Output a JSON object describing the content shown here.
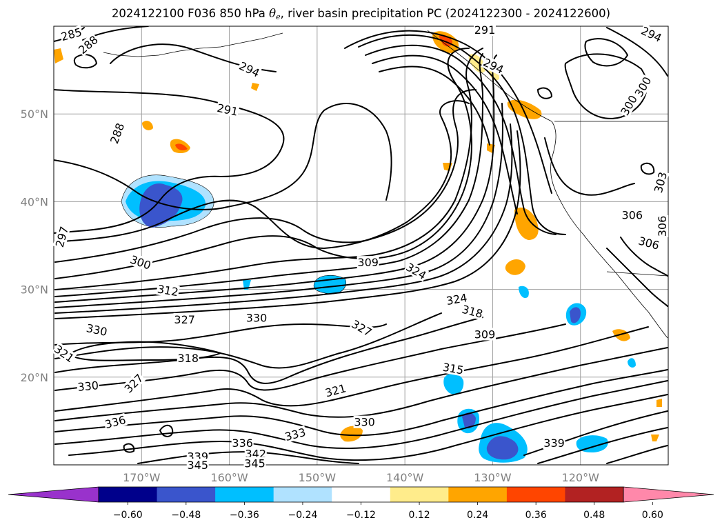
{
  "title": {
    "prefix": "2024122100 F036 850 hPa ",
    "theta": "θ",
    "subscript": "e",
    "suffix": ", river basin precipitation PC (2024122300 - 2024122600)"
  },
  "map": {
    "extent": {
      "lon_min": -180,
      "lon_max": -110,
      "lat_min": 10,
      "lat_max": 60
    },
    "lon_ticks": [
      {
        "lon": -170,
        "label": "170°W"
      },
      {
        "lon": -160,
        "label": "160°W"
      },
      {
        "lon": -150,
        "label": "150°W"
      },
      {
        "lon": -140,
        "label": "140°W"
      },
      {
        "lon": -130,
        "label": "130°W"
      },
      {
        "lon": -120,
        "label": "120°W"
      }
    ],
    "lat_ticks": [
      {
        "lat": 20,
        "label": "20°N"
      },
      {
        "lat": 30,
        "label": "30°N"
      },
      {
        "lat": 40,
        "label": "40°N"
      },
      {
        "lat": 50,
        "label": "50°N"
      }
    ],
    "grid": true,
    "gridline_color": "#a0a0a0"
  },
  "contour_labels": [
    {
      "text": "285",
      "lon": -178.0,
      "lat": 59.1,
      "angle": -15
    },
    {
      "text": "288",
      "lon": -176.1,
      "lat": 57.9,
      "angle": -40
    },
    {
      "text": "294",
      "lon": -157.7,
      "lat": 55.1,
      "angle": 25
    },
    {
      "text": "291",
      "lon": -160.2,
      "lat": 50.5,
      "angle": 12
    },
    {
      "text": "288",
      "lon": -172.8,
      "lat": 47.8,
      "angle": -70
    },
    {
      "text": "291",
      "lon": -130.9,
      "lat": 59.6,
      "angle": 0
    },
    {
      "text": "294",
      "lon": -129.9,
      "lat": 55.5,
      "angle": 25
    },
    {
      "text": "294",
      "lon": -111.9,
      "lat": 59.1,
      "angle": 25
    },
    {
      "text": "300",
      "lon": -112.9,
      "lat": 53.1,
      "angle": -60
    },
    {
      "text": "300",
      "lon": -114.5,
      "lat": 51.0,
      "angle": -60
    },
    {
      "text": "306",
      "lon": -114.1,
      "lat": 38.5,
      "angle": 0
    },
    {
      "text": "303",
      "lon": -110.9,
      "lat": 42.2,
      "angle": -75
    },
    {
      "text": "306",
      "lon": -110.7,
      "lat": 37.2,
      "angle": -90
    },
    {
      "text": "306",
      "lon": -112.2,
      "lat": 35.3,
      "angle": 15
    },
    {
      "text": "297",
      "lon": -179.1,
      "lat": 36.0,
      "angle": -75
    },
    {
      "text": "300",
      "lon": -170.1,
      "lat": 33.1,
      "angle": 20
    },
    {
      "text": "309",
      "lon": -144.2,
      "lat": 33.1,
      "angle": 0
    },
    {
      "text": "324",
      "lon": -138.7,
      "lat": 32.1,
      "angle": 30
    },
    {
      "text": "312",
      "lon": -167.0,
      "lat": 29.9,
      "angle": 10
    },
    {
      "text": "324",
      "lon": -134.1,
      "lat": 28.9,
      "angle": -10
    },
    {
      "text": "318",
      "lon": -132.3,
      "lat": 27.5,
      "angle": 15
    },
    {
      "text": "327",
      "lon": -165.1,
      "lat": 26.6,
      "angle": 0
    },
    {
      "text": "330",
      "lon": -156.9,
      "lat": 26.8,
      "angle": 0
    },
    {
      "text": "327",
      "lon": -144.9,
      "lat": 25.6,
      "angle": 30
    },
    {
      "text": "330",
      "lon": -175.1,
      "lat": 25.4,
      "angle": 12
    },
    {
      "text": "309",
      "lon": -130.9,
      "lat": 24.9,
      "angle": 0
    },
    {
      "text": "321",
      "lon": -178.8,
      "lat": 22.7,
      "angle": 35
    },
    {
      "text": "318",
      "lon": -164.7,
      "lat": 22.2,
      "angle": 0
    },
    {
      "text": "315",
      "lon": -134.5,
      "lat": 21.0,
      "angle": 10
    },
    {
      "text": "327",
      "lon": -170.9,
      "lat": 19.3,
      "angle": -45
    },
    {
      "text": "330",
      "lon": -176.1,
      "lat": 19.0,
      "angle": -5
    },
    {
      "text": "321",
      "lon": -147.9,
      "lat": 18.5,
      "angle": -15
    },
    {
      "text": "336",
      "lon": -173.0,
      "lat": 14.9,
      "angle": -15
    },
    {
      "text": "330",
      "lon": -144.6,
      "lat": 14.9,
      "angle": 0
    },
    {
      "text": "333",
      "lon": -152.5,
      "lat": 13.5,
      "angle": -15
    },
    {
      "text": "339",
      "lon": -123.0,
      "lat": 12.5,
      "angle": 0
    },
    {
      "text": "336",
      "lon": -158.5,
      "lat": 12.5,
      "angle": 0
    },
    {
      "text": "342",
      "lon": -157.0,
      "lat": 11.3,
      "angle": 0
    },
    {
      "text": "339",
      "lon": -163.6,
      "lat": 11.0,
      "angle": 0
    },
    {
      "text": "345",
      "lon": -163.6,
      "lat": 10.0,
      "angle": 0
    },
    {
      "text": "345",
      "lon": -157.1,
      "lat": 10.2,
      "angle": 0
    }
  ],
  "precip_pc_anomalies": [
    {
      "lon": -165.5,
      "lat": 40.0,
      "level": -0.36
    },
    {
      "lon": -164.9,
      "lat": 39.5,
      "level": -0.48
    },
    {
      "lon": -150.9,
      "lat": 30.5,
      "level": -0.24
    },
    {
      "lon": -128.7,
      "lat": 29.5,
      "level": -0.24
    },
    {
      "lon": -125.4,
      "lat": 27.5,
      "level": -0.36
    },
    {
      "lon": -134.6,
      "lat": 19.5,
      "level": -0.24
    },
    {
      "lon": -132.5,
      "lat": 15.0,
      "level": -0.36
    },
    {
      "lon": -129.2,
      "lat": 12.0,
      "level": -0.48
    },
    {
      "lon": -122.1,
      "lat": 12.5,
      "level": -0.24
    },
    {
      "lon": -133.9,
      "lat": 59.0,
      "level": 0.24
    },
    {
      "lon": -127.1,
      "lat": 50.5,
      "level": 0.24
    },
    {
      "lon": -163.4,
      "lat": 47.0,
      "level": 0.36
    },
    {
      "lon": -127.1,
      "lat": 37.9,
      "level": 0.24
    },
    {
      "lon": -128.0,
      "lat": 32.5,
      "level": 0.24
    },
    {
      "lon": -144.4,
      "lat": 13.5,
      "level": 0.24
    }
  ],
  "colorbar": {
    "orientation": "horizontal",
    "extend": "both",
    "tick_labels": [
      "−0.60",
      "−0.48",
      "−0.36",
      "−0.24",
      "−0.12",
      "0.12",
      "0.24",
      "0.36",
      "0.48",
      "0.60"
    ],
    "under_color": "#9932cc",
    "over_color": "#ff88aa",
    "colors": [
      "#00008b",
      "#3a55cc",
      "#00bfff",
      "#b0e2ff",
      "#ffffff",
      "#ffec8b",
      "#ffa500",
      "#ff4500",
      "#b22222"
    ]
  },
  "palette": {
    "contour": "#000000",
    "coastline": "#000000",
    "tick_text": "#808080"
  }
}
